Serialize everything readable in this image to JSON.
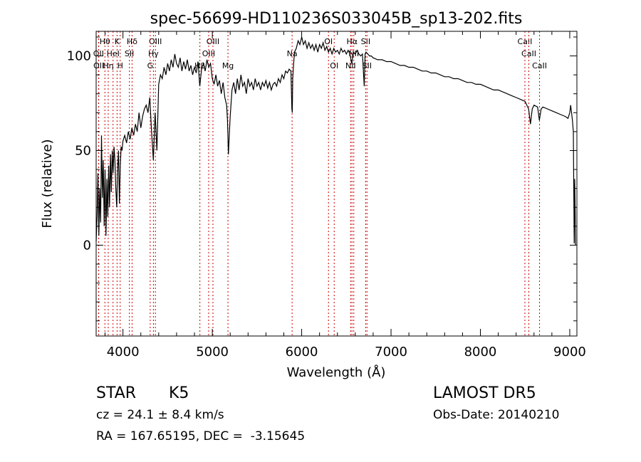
{
  "chart_data": {
    "type": "line",
    "title": "spec-56699-HD110236S033045B_sp13-202.fits",
    "xlabel": "Wavelength (Å)",
    "ylabel": "Flux (relative)",
    "xlim": [
      3700,
      9080
    ],
    "ylim": [
      -48,
      113
    ],
    "x_ticks": [
      4000,
      5000,
      6000,
      7000,
      8000,
      9000
    ],
    "y_ticks": [
      0,
      50,
      100
    ],
    "grid": false,
    "series": [
      {
        "points": [
          [
            3700,
            2
          ],
          [
            3710,
            15
          ],
          [
            3720,
            38
          ],
          [
            3730,
            5
          ],
          [
            3740,
            30
          ],
          [
            3750,
            12
          ],
          [
            3760,
            58
          ],
          [
            3770,
            25
          ],
          [
            3780,
            45
          ],
          [
            3790,
            10
          ],
          [
            3800,
            40
          ],
          [
            3810,
            5
          ],
          [
            3820,
            35
          ],
          [
            3830,
            15
          ],
          [
            3840,
            42
          ],
          [
            3850,
            20
          ],
          [
            3860,
            48
          ],
          [
            3870,
            28
          ],
          [
            3880,
            50
          ],
          [
            3890,
            38
          ],
          [
            3900,
            52
          ],
          [
            3910,
            45
          ],
          [
            3920,
            30
          ],
          [
            3930,
            20
          ],
          [
            3940,
            40
          ],
          [
            3950,
            50
          ],
          [
            3960,
            22
          ],
          [
            3970,
            42
          ],
          [
            3980,
            52
          ],
          [
            3990,
            50
          ],
          [
            4000,
            55
          ],
          [
            4020,
            58
          ],
          [
            4040,
            54
          ],
          [
            4060,
            60
          ],
          [
            4080,
            56
          ],
          [
            4100,
            62
          ],
          [
            4120,
            58
          ],
          [
            4140,
            64
          ],
          [
            4160,
            60
          ],
          [
            4180,
            70
          ],
          [
            4200,
            62
          ],
          [
            4220,
            68
          ],
          [
            4240,
            72
          ],
          [
            4260,
            74
          ],
          [
            4280,
            70
          ],
          [
            4300,
            78
          ],
          [
            4320,
            60
          ],
          [
            4340,
            45
          ],
          [
            4360,
            70
          ],
          [
            4380,
            50
          ],
          [
            4400,
            85
          ],
          [
            4420,
            90
          ],
          [
            4440,
            88
          ],
          [
            4460,
            94
          ],
          [
            4480,
            90
          ],
          [
            4500,
            96
          ],
          [
            4520,
            92
          ],
          [
            4540,
            98
          ],
          [
            4560,
            94
          ],
          [
            4580,
            101
          ],
          [
            4600,
            96
          ],
          [
            4620,
            94
          ],
          [
            4640,
            99
          ],
          [
            4660,
            92
          ],
          [
            4680,
            97
          ],
          [
            4700,
            93
          ],
          [
            4720,
            98
          ],
          [
            4740,
            92
          ],
          [
            4760,
            95
          ],
          [
            4780,
            90
          ],
          [
            4800,
            94
          ],
          [
            4820,
            91
          ],
          [
            4840,
            97
          ],
          [
            4860,
            84
          ],
          [
            4880,
            93
          ],
          [
            4900,
            96
          ],
          [
            4920,
            92
          ],
          [
            4940,
            98
          ],
          [
            4960,
            94
          ],
          [
            4980,
            96
          ],
          [
            5000,
            88
          ],
          [
            5020,
            85
          ],
          [
            5040,
            90
          ],
          [
            5060,
            84
          ],
          [
            5080,
            87
          ],
          [
            5100,
            80
          ],
          [
            5120,
            86
          ],
          [
            5140,
            78
          ],
          [
            5160,
            74
          ],
          [
            5170,
            66
          ],
          [
            5180,
            48
          ],
          [
            5190,
            58
          ],
          [
            5200,
            68
          ],
          [
            5220,
            82
          ],
          [
            5240,
            86
          ],
          [
            5260,
            80
          ],
          [
            5280,
            88
          ],
          [
            5300,
            82
          ],
          [
            5320,
            90
          ],
          [
            5340,
            84
          ],
          [
            5360,
            86
          ],
          [
            5380,
            80
          ],
          [
            5400,
            88
          ],
          [
            5420,
            84
          ],
          [
            5440,
            86
          ],
          [
            5460,
            82
          ],
          [
            5480,
            88
          ],
          [
            5500,
            84
          ],
          [
            5520,
            86
          ],
          [
            5540,
            82
          ],
          [
            5560,
            86
          ],
          [
            5580,
            84
          ],
          [
            5600,
            87
          ],
          [
            5620,
            83
          ],
          [
            5640,
            86
          ],
          [
            5660,
            82
          ],
          [
            5680,
            85
          ],
          [
            5700,
            86
          ],
          [
            5720,
            84
          ],
          [
            5740,
            88
          ],
          [
            5760,
            86
          ],
          [
            5780,
            90
          ],
          [
            5800,
            88
          ],
          [
            5820,
            92
          ],
          [
            5840,
            91
          ],
          [
            5860,
            93
          ],
          [
            5880,
            92
          ],
          [
            5890,
            72
          ],
          [
            5895,
            70
          ],
          [
            5900,
            88
          ],
          [
            5910,
            96
          ],
          [
            5920,
            102
          ],
          [
            5940,
            104
          ],
          [
            5960,
            108
          ],
          [
            5980,
            106
          ],
          [
            6000,
            110
          ],
          [
            6020,
            106
          ],
          [
            6040,
            108
          ],
          [
            6060,
            104
          ],
          [
            6080,
            107
          ],
          [
            6100,
            104
          ],
          [
            6120,
            106
          ],
          [
            6140,
            103
          ],
          [
            6160,
            106
          ],
          [
            6180,
            102
          ],
          [
            6200,
            106
          ],
          [
            6220,
            104
          ],
          [
            6240,
            107
          ],
          [
            6260,
            103
          ],
          [
            6280,
            105
          ],
          [
            6300,
            102
          ],
          [
            6320,
            104
          ],
          [
            6340,
            101
          ],
          [
            6360,
            104
          ],
          [
            6380,
            102
          ],
          [
            6400,
            103
          ],
          [
            6420,
            101
          ],
          [
            6440,
            104
          ],
          [
            6460,
            102
          ],
          [
            6480,
            103
          ],
          [
            6500,
            101
          ],
          [
            6520,
            103
          ],
          [
            6540,
            101
          ],
          [
            6560,
            96
          ],
          [
            6570,
            99
          ],
          [
            6580,
            102
          ],
          [
            6600,
            101
          ],
          [
            6620,
            103
          ],
          [
            6640,
            101
          ],
          [
            6660,
            100
          ],
          [
            6680,
            101
          ],
          [
            6700,
            84
          ],
          [
            6710,
            101
          ],
          [
            6720,
            102
          ],
          [
            6740,
            101
          ],
          [
            6760,
            100
          ],
          [
            6780,
            100
          ],
          [
            6800,
            99
          ],
          [
            6850,
            98
          ],
          [
            6900,
            98
          ],
          [
            6950,
            97
          ],
          [
            7000,
            97
          ],
          [
            7050,
            96
          ],
          [
            7100,
            95
          ],
          [
            7150,
            95
          ],
          [
            7200,
            94
          ],
          [
            7250,
            94
          ],
          [
            7300,
            93
          ],
          [
            7350,
            92
          ],
          [
            7400,
            92
          ],
          [
            7450,
            91
          ],
          [
            7500,
            91
          ],
          [
            7550,
            90
          ],
          [
            7600,
            89
          ],
          [
            7650,
            89
          ],
          [
            7700,
            88
          ],
          [
            7750,
            88
          ],
          [
            7800,
            87
          ],
          [
            7850,
            86
          ],
          [
            7900,
            86
          ],
          [
            7950,
            85
          ],
          [
            8000,
            85
          ],
          [
            8050,
            84
          ],
          [
            8100,
            83
          ],
          [
            8150,
            82
          ],
          [
            8200,
            82
          ],
          [
            8250,
            81
          ],
          [
            8300,
            80
          ],
          [
            8350,
            79
          ],
          [
            8400,
            78
          ],
          [
            8450,
            77
          ],
          [
            8500,
            76
          ],
          [
            8540,
            72
          ],
          [
            8560,
            64
          ],
          [
            8580,
            72
          ],
          [
            8600,
            74
          ],
          [
            8640,
            73
          ],
          [
            8660,
            66
          ],
          [
            8680,
            72
          ],
          [
            8700,
            73
          ],
          [
            8750,
            72
          ],
          [
            8800,
            71
          ],
          [
            8850,
            70
          ],
          [
            8900,
            69
          ],
          [
            8950,
            68
          ],
          [
            8980,
            67
          ],
          [
            9000,
            70
          ],
          [
            9010,
            74
          ],
          [
            9020,
            70
          ],
          [
            9030,
            66
          ],
          [
            9040,
            60
          ],
          [
            9050,
            1
          ],
          [
            9055,
            35
          ],
          [
            9060,
            20
          ],
          [
            9065,
            0
          ]
        ]
      }
    ],
    "line_marker_color": "#cc0000",
    "lines": [
      {
        "name": "Hθ",
        "wave": 3798,
        "row": 0
      },
      {
        "name": "OII",
        "wave": 3727,
        "row": 1
      },
      {
        "name": "OII",
        "wave": 3729,
        "row": 2
      },
      {
        "name": "K",
        "wave": 3934,
        "row": 0
      },
      {
        "name": "HeI",
        "wave": 3889,
        "row": 1
      },
      {
        "name": "Hη",
        "wave": 3835,
        "row": 2
      },
      {
        "name": "H",
        "wave": 3969,
        "row": 2
      },
      {
        "name": "Hδ",
        "wave": 4102,
        "row": 0
      },
      {
        "name": "SII",
        "wave": 4072,
        "row": 1
      },
      {
        "name": "OIII",
        "wave": 4363,
        "row": 0
      },
      {
        "name": "Hγ",
        "wave": 4341,
        "row": 1
      },
      {
        "name": "G",
        "wave": 4305,
        "row": 2
      },
      {
        "name": "OIII",
        "wave": 5007,
        "row": 0
      },
      {
        "name": "OIII",
        "wave": 4959,
        "row": 1
      },
      {
        "name": "Hβ",
        "wave": 4861,
        "row": 2
      },
      {
        "name": "Mg",
        "wave": 5175,
        "row": 2
      },
      {
        "name": "Na",
        "wave": 5893,
        "row": 1
      },
      {
        "name": "OI",
        "wave": 6300,
        "row": 0
      },
      {
        "name": "OI",
        "wave": 6364,
        "row": 2
      },
      {
        "name": "Hα",
        "wave": 6563,
        "row": 0
      },
      {
        "name": "NII",
        "wave": 6548,
        "row": 2
      },
      {
        "name": "NII",
        "wave": 6583,
        "row": 1
      },
      {
        "name": "SII",
        "wave": 6716,
        "row": 0
      },
      {
        "name": "SII",
        "wave": 6731,
        "row": 2
      },
      {
        "name": "CaII",
        "wave": 8498,
        "row": 0
      },
      {
        "name": "CaII",
        "wave": 8542,
        "row": 1
      },
      {
        "name": "CaII",
        "wave": 8662,
        "row": 2
      }
    ]
  },
  "info": {
    "class": "STAR",
    "subclass": "K5",
    "cz": "cz = 24.1 ± 8.4 km/s",
    "radec": "RA = 167.65195, DEC =  -3.15645",
    "survey": "LAMOST DR5",
    "obs_date": "Obs-Date: 20140210"
  }
}
